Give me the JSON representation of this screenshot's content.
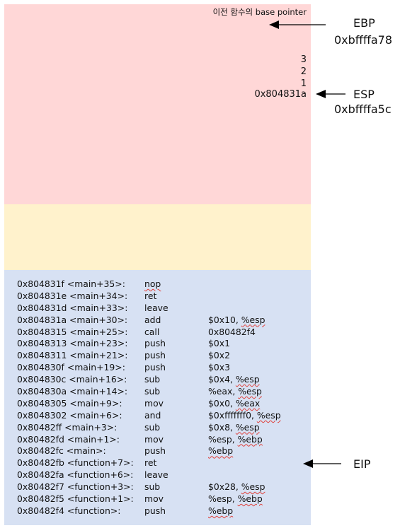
{
  "colors": {
    "stack_region": "#ffd7d7",
    "heap_region": "#fff2cc",
    "code_region": "#d7e1f3",
    "arrow": "#000000",
    "spell_squiggle": "#e0413b"
  },
  "stack": {
    "prev_base_pointer": "이전 함수의 base pointer",
    "values": [
      "3",
      "2",
      "1"
    ],
    "return_address": "0x804831a"
  },
  "registers": {
    "ebp": {
      "label": "EBP",
      "value": "0xbffffa78"
    },
    "esp": {
      "label": "ESP",
      "value": "0xbffffa5c"
    },
    "eip": {
      "label": "EIP"
    }
  },
  "code": [
    {
      "addr": "0x804831f <main+35>:",
      "op": "nop",
      "args": "",
      "squiggle": "op"
    },
    {
      "addr": "0x804831e <main+34>:",
      "op": "ret",
      "args": ""
    },
    {
      "addr": "0x804831d <main+33>:",
      "op": "leave",
      "args": ""
    },
    {
      "addr": "0x804831a <main+30>:",
      "op": "add",
      "args": "$0x10, ",
      "arg_sq": "%esp"
    },
    {
      "addr": "0x8048315 <main+25>:",
      "op": "call",
      "args": "0x80482f4"
    },
    {
      "addr": "0x8048313 <main+23>:",
      "op": "push",
      "args": "$0x1"
    },
    {
      "addr": "0x8048311 <main+21>:",
      "op": "push",
      "args": "$0x2"
    },
    {
      "addr": "0x804830f <main+19>:",
      "op": "push",
      "args": "$0x3"
    },
    {
      "addr": "0x804830c <main+16>:",
      "op": "sub",
      "args": "$0x4, ",
      "arg_sq": "%esp"
    },
    {
      "addr": "0x804830a <main+14>:",
      "op": "sub",
      "args": "%eax, ",
      "arg_sq": "%esp"
    },
    {
      "addr": "0x8048305 <main+9>:",
      "op": "mov",
      "args": "$0x0, ",
      "arg_sq": "%eax"
    },
    {
      "addr": "0x8048302 <main+6>:",
      "op": "and",
      "args": "$0xfffffff0, ",
      "arg_sq": "%esp"
    },
    {
      "addr": "0x80482ff  <main+3>:",
      "op": "sub",
      "args": "$0x8, ",
      "arg_sq": "%esp"
    },
    {
      "addr": "0x80482fd <main+1>:",
      "op": "mov",
      "args": "%esp, ",
      "arg_sq": "%ebp"
    },
    {
      "addr": "0x80482fc <main>:",
      "op": "push",
      "args": "",
      "arg_sq": "%ebp"
    },
    {
      "addr": "0x80482fb <function+7>:",
      "op": "ret",
      "args": ""
    },
    {
      "addr": "0x80482fa <function+6>:",
      "op": "leave",
      "args": ""
    },
    {
      "addr": "0x80482f7 <function+3>:",
      "op": "sub",
      "args": "$0x28, ",
      "arg_sq": "%esp"
    },
    {
      "addr": "0x80482f5 <function+1>:",
      "op": "mov",
      "args": "%esp, ",
      "arg_sq": "%ebp"
    },
    {
      "addr": "0x80482f4 <function>:",
      "op": "push",
      "args": "",
      "arg_sq": "%ebp"
    }
  ]
}
